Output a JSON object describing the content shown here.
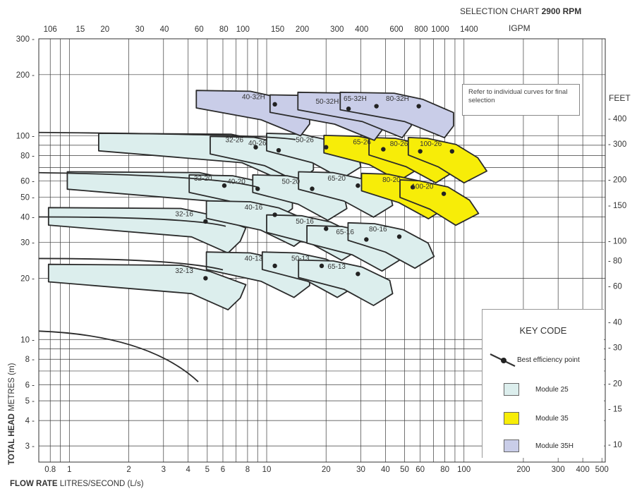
{
  "header": {
    "selection_prefix": "SELECTION CHART ",
    "selection_rpm": "2900 RPM",
    "top_unit": "IGPM",
    "right_unit": "FEET"
  },
  "note": "Refer to individual curves for final selection",
  "key": {
    "title": "KEY CODE",
    "best_eff": "Best efficiency point",
    "items": [
      {
        "label": "Module 25",
        "color": "#dceeed"
      },
      {
        "label": "Module 35",
        "color": "#f7ed08"
      },
      {
        "label": "Module 35H",
        "color": "#c9cde8"
      }
    ]
  },
  "axis_labels": {
    "y_bold": "TOTAL HEAD",
    "y_rest": " METRES (m)",
    "x_bold": "FLOW RATE",
    "x_rest": " LITRES/SECOND (L/s)"
  },
  "chart_data": {
    "type": "pump-selection-chart",
    "title": "SELECTION CHART 2900 RPM",
    "x_axis": {
      "label": "FLOW RATE LITRES/SECOND (L/s)",
      "scale": "log",
      "range": [
        0.7,
        520
      ],
      "ticks": [
        "0.8",
        "1",
        "2",
        "3",
        "4",
        "5",
        "6",
        "8",
        "10",
        "20",
        "30",
        "40",
        "50",
        "60",
        "80",
        "100",
        "200",
        "300",
        "400",
        "500"
      ]
    },
    "y_axis": {
      "label": "TOTAL HEAD METRES (m)",
      "scale": "log",
      "range": [
        2.5,
        300
      ],
      "ticks": [
        "3",
        "4",
        "5",
        "6",
        "8",
        "10",
        "20",
        "30",
        "40",
        "50",
        "60",
        "80",
        "100",
        "200",
        "300"
      ]
    },
    "top_axis": {
      "label": "IGPM",
      "ticks": [
        "106",
        "15",
        "20",
        "30",
        "40",
        "60",
        "80",
        "100",
        "150",
        "200",
        "300",
        "400",
        "600",
        "800",
        "1000",
        "1400"
      ]
    },
    "right_axis": {
      "label": "FEET",
      "ticks": [
        "400",
        "300",
        "200",
        "150",
        "100",
        "80",
        "60",
        "40",
        "30",
        "20",
        "15",
        "10"
      ]
    },
    "pumps": [
      {
        "name": "32-26",
        "module": "25",
        "bep": [
          8.8,
          88
        ]
      },
      {
        "name": "32-20",
        "module": "25",
        "bep": [
          6.1,
          57
        ]
      },
      {
        "name": "32-16",
        "module": "25",
        "bep": [
          4.9,
          38
        ]
      },
      {
        "name": "32-13",
        "module": "25",
        "bep": [
          4.9,
          20
        ]
      },
      {
        "name": "40-26",
        "module": "25",
        "bep": [
          11.5,
          85
        ]
      },
      {
        "name": "40-20",
        "module": "25",
        "bep": [
          9.0,
          55
        ]
      },
      {
        "name": "40-16",
        "module": "25",
        "bep": [
          11.0,
          41
        ]
      },
      {
        "name": "40-13",
        "module": "25",
        "bep": [
          11.0,
          23
        ]
      },
      {
        "name": "50-26",
        "module": "25",
        "bep": [
          20,
          88
        ]
      },
      {
        "name": "50-20",
        "module": "25",
        "bep": [
          17,
          55
        ]
      },
      {
        "name": "50-16",
        "module": "25",
        "bep": [
          20,
          35
        ]
      },
      {
        "name": "50-13",
        "module": "25",
        "bep": [
          19,
          23
        ]
      },
      {
        "name": "65-26",
        "module": "35",
        "bep": [
          39,
          86
        ]
      },
      {
        "name": "65-20",
        "module": "25",
        "bep": [
          29,
          57
        ]
      },
      {
        "name": "65-16",
        "module": "25",
        "bep": [
          32,
          31
        ]
      },
      {
        "name": "65-13",
        "module": "25",
        "bep": [
          29,
          21
        ]
      },
      {
        "name": "80-26",
        "module": "35",
        "bep": [
          60,
          84
        ]
      },
      {
        "name": "80-20",
        "module": "35",
        "bep": [
          55,
          56
        ]
      },
      {
        "name": "80-16",
        "module": "25",
        "bep": [
          47,
          32
        ]
      },
      {
        "name": "100-26",
        "module": "35",
        "bep": [
          87,
          84
        ]
      },
      {
        "name": "100-20",
        "module": "35",
        "bep": [
          79,
          52
        ]
      },
      {
        "name": "40-32H",
        "module": "35H",
        "bep": [
          11.0,
          143
        ]
      },
      {
        "name": "50-32H",
        "module": "35H",
        "bep": [
          26,
          136
        ]
      },
      {
        "name": "65-32H",
        "module": "35H",
        "bep": [
          36,
          140
        ]
      },
      {
        "name": "80-32H",
        "module": "35H",
        "bep": [
          59,
          140
        ]
      }
    ],
    "grid": true
  }
}
